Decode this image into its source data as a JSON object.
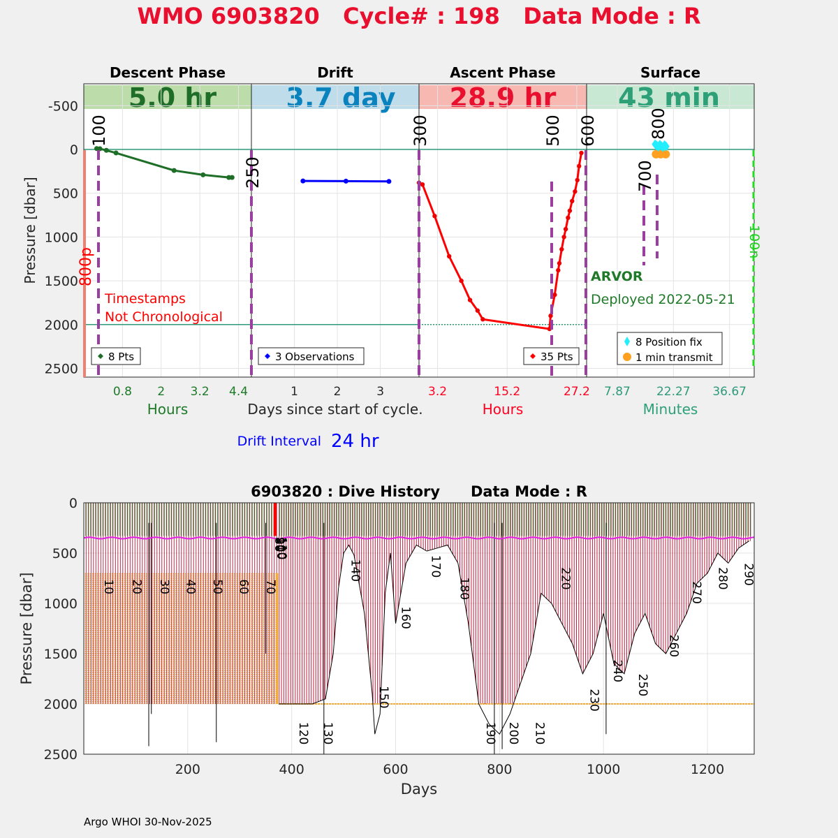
{
  "header": {
    "title": "WMO 6903820   Cycle# : 198   Data Mode : R"
  },
  "phases": {
    "descent": {
      "title": "Descent Phase",
      "duration": "5.0 hr",
      "legend": "8 Pts",
      "xlabel": "Hours",
      "ticks": [
        "0.8",
        "2",
        "3.2",
        "4.4"
      ],
      "color": "#1e6e28",
      "band": "#bcdcaa"
    },
    "drift": {
      "title": "Drift",
      "duration": "3.7 day",
      "legend": "3 Observations",
      "xlabel": "Days since start of cycle.",
      "ticks": [
        "1",
        "2",
        "3"
      ],
      "color": "#0a82be",
      "band": "#bedcea"
    },
    "ascent": {
      "title": "Ascent Phase",
      "duration": "28.9 hr",
      "legend": "35 Pts",
      "xlabel": "Hours",
      "ticks": [
        "3.2",
        "15.2",
        "27.2"
      ],
      "color": "#e8102e",
      "band": "#f8b8b2"
    },
    "surface": {
      "title": "Surface",
      "duration": "43 min",
      "legend_fix": "8 Position fix",
      "legend_transmit": "1 min transmit",
      "xlabel": "Minutes",
      "ticks": [
        "7.87",
        "22.27",
        "36.67"
      ],
      "color": "#2ea078",
      "band": "#c8e8d4"
    }
  },
  "top_axis": {
    "ylabel": "Pressure [dbar]",
    "yticks": [
      "-500",
      "0",
      "500",
      "1000",
      "1500",
      "2000",
      "2500"
    ],
    "ymin": -750,
    "ymax": 2600
  },
  "annotations": {
    "warning_line1": "Timestamps",
    "warning_line2": "Not Chronological",
    "left_marker": "800p",
    "right_marker": "100n",
    "markers": [
      "100",
      "250",
      "300",
      "500",
      "600",
      "700",
      "800"
    ],
    "platform": "ARVOR",
    "deployed": "Deployed 2022-05-21"
  },
  "drift_interval": {
    "label": "Drift Interval",
    "value": "24 hr"
  },
  "chart_data": [
    {
      "type": "line",
      "name": "descent",
      "title": "Descent Phase",
      "x": [
        0.0,
        0.1,
        0.3,
        0.6,
        2.4,
        3.3,
        4.1,
        4.2
      ],
      "y": [
        -10,
        -8,
        10,
        40,
        240,
        290,
        320,
        320
      ],
      "xlabel": "Hours",
      "ylabel": "Pressure [dbar]",
      "xlim": [
        -0.4,
        4.8
      ],
      "ylim": [
        2600,
        -750
      ]
    },
    {
      "type": "line",
      "name": "drift",
      "title": "Drift",
      "x": [
        1.2,
        2.2,
        3.2
      ],
      "y": [
        360,
        362,
        365
      ],
      "xlabel": "Days since start of cycle.",
      "ylabel": "Pressure [dbar]",
      "xlim": [
        0.0,
        3.9
      ],
      "ylim": [
        2600,
        -750
      ]
    },
    {
      "type": "line",
      "name": "ascent",
      "title": "Ascent Phase",
      "x": [
        0.0,
        0.6,
        2.7,
        5.2,
        7.3,
        8.8,
        10.1,
        11.0,
        22.5,
        22.7,
        23.4,
        24.0,
        24.2,
        24.6,
        25.0,
        25.3,
        25.7,
        26.0,
        26.4,
        26.9,
        27.3,
        27.6,
        28.0
      ],
      "y": [
        380,
        400,
        760,
        1220,
        1500,
        1720,
        1840,
        1940,
        2050,
        1900,
        1660,
        1380,
        1300,
        1140,
        1000,
        910,
        780,
        700,
        590,
        480,
        350,
        190,
        40
      ],
      "xlabel": "Hours",
      "ylabel": "Pressure [dbar]",
      "xlim": [
        0.0,
        28.9
      ],
      "ylim": [
        2600,
        -750
      ]
    },
    {
      "type": "scatter",
      "name": "surface",
      "title": "Surface",
      "series": [
        {
          "name": "8 Position fix",
          "x": [
            17.6,
            18.0,
            18.4,
            18.8,
            19.2,
            19.6,
            20.0,
            20.4
          ],
          "y": [
            -60,
            -45,
            -30,
            -55,
            -40,
            -25,
            -50,
            -35
          ],
          "color": "#22eeff"
        },
        {
          "name": "1 min transmit",
          "x": [
            17.8,
            19.0,
            20.3
          ],
          "y": [
            55,
            55,
            55
          ],
          "color": "#ffa020"
        }
      ],
      "xlabel": "Minutes",
      "ylabel": "Pressure [dbar]",
      "xlim": [
        0,
        43
      ],
      "ylim": [
        2600,
        -750
      ]
    },
    {
      "type": "line",
      "name": "dive_history",
      "title": "6903820 : Dive History      Data Mode : R",
      "xlabel": "Days",
      "ylabel": "Pressure [dbar]",
      "xticks": [
        "200",
        "400",
        "600",
        "800",
        "1000",
        "1200"
      ],
      "yticks": [
        "0",
        "500",
        "1000",
        "1500",
        "2000",
        "2500"
      ],
      "xlim": [
        0,
        1290
      ],
      "ylim": [
        2500,
        0
      ],
      "profile_count": 290,
      "parking_pressure": 350,
      "early_profile_depth": 700,
      "max_profile_depth": 2000,
      "cycle_labels": [
        "10",
        "20",
        "30",
        "40",
        "50",
        "60",
        "70",
        "80",
        "90",
        "100",
        "110",
        "120",
        "130",
        "140",
        "150",
        "160",
        "170",
        "180",
        "190",
        "200",
        "210",
        "220",
        "230",
        "240",
        "250",
        "260",
        "270",
        "280",
        "290"
      ],
      "cycle_label_days": [
        40,
        95,
        148,
        198,
        250,
        300,
        352,
        368,
        370,
        372,
        374,
        415,
        462,
        515,
        570,
        612,
        670,
        725,
        775,
        820,
        870,
        920,
        975,
        1020,
        1068,
        1128,
        1172,
        1222,
        1272
      ],
      "cycle_label_pressure": [
        760,
        760,
        760,
        760,
        760,
        760,
        760,
        340,
        340,
        340,
        340,
        2180,
        2180,
        560,
        1820,
        1030,
        520,
        740,
        2180,
        2180,
        2180,
        640,
        1850,
        1560,
        1700,
        1310,
        780,
        640,
        600
      ],
      "max_depth_envelope": {
        "x": [
          375,
          405,
          440,
          465,
          480,
          490,
          500,
          510,
          520,
          540,
          555,
          560,
          570,
          580,
          590,
          600,
          620,
          640,
          660,
          680,
          700,
          720,
          740,
          760,
          780,
          800,
          820,
          840,
          860,
          880,
          900,
          920,
          940,
          960,
          980,
          1000,
          1020,
          1040,
          1060,
          1080,
          1100,
          1120,
          1140,
          1160,
          1180,
          1200,
          1220,
          1240,
          1260,
          1280
        ],
        "y": [
          2000,
          2000,
          2000,
          1950,
          1500,
          850,
          500,
          420,
          520,
          1100,
          1900,
          2300,
          2100,
          900,
          500,
          1200,
          600,
          420,
          480,
          450,
          420,
          600,
          1200,
          2000,
          2200,
          2300,
          2100,
          1800,
          1500,
          900,
          1000,
          1200,
          1400,
          1700,
          1500,
          1100,
          1600,
          1700,
          1300,
          1100,
          1400,
          1500,
          1300,
          1100,
          800,
          700,
          500,
          600,
          450,
          380
        ]
      }
    }
  ],
  "footer": {
    "credit": "Argo WHOI 30-Nov-2025"
  }
}
